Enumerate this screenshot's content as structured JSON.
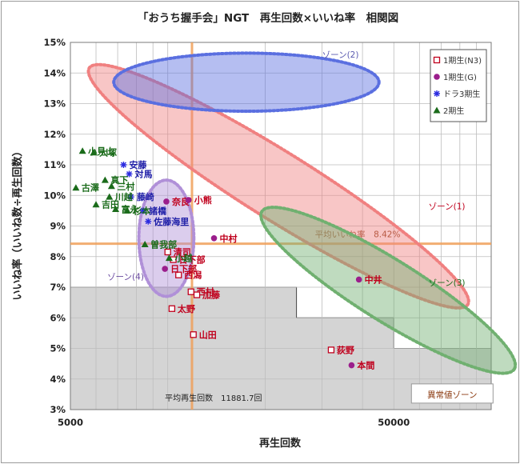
{
  "chart_data": {
    "type": "scatter",
    "title": "「おうち握手会」NGT　再生回数×いいね率　相関図",
    "xlabel": "再生回数",
    "ylabel": "いいね率（いいね数÷再生回数）",
    "x_scale": "log",
    "xlim": [
      5000,
      100000
    ],
    "ylim": [
      3,
      15
    ],
    "x_ticks": [
      5000,
      50000
    ],
    "x_tick_labels": [
      "5000",
      "50000"
    ],
    "y_ticks": [
      3,
      4,
      5,
      6,
      7,
      8,
      9,
      10,
      11,
      12,
      13,
      14,
      15
    ],
    "y_tick_labels": [
      "3%",
      "4%",
      "5%",
      "6%",
      "7%",
      "8%",
      "9%",
      "10%",
      "11%",
      "12%",
      "13%",
      "14%",
      "15%"
    ],
    "grid": true,
    "legend_position": "top-right",
    "series": [
      {
        "name": "1期生(N3)",
        "marker": "open-square",
        "color": "#c0001d",
        "label_color": "#c0001d",
        "points": [
          {
            "label": "清司",
            "x": 10000,
            "y": 8.15
          },
          {
            "label": "日下部",
            "x": 10400,
            "y": 7.9
          },
          {
            "label": "西潟",
            "x": 10800,
            "y": 7.4
          },
          {
            "label": "西村",
            "x": 11800,
            "y": 6.85
          },
          {
            "label": "加藤",
            "x": 12300,
            "y": 6.75
          },
          {
            "label": "太野",
            "x": 10300,
            "y": 6.3
          },
          {
            "label": "山田",
            "x": 12000,
            "y": 5.45
          },
          {
            "label": "荻野",
            "x": 32000,
            "y": 4.95
          }
        ]
      },
      {
        "name": "1期生(G)",
        "marker": "circle",
        "color": "#9b1e8c",
        "label_color": "#c0001d",
        "points": [
          {
            "label": "奈良",
            "x": 9900,
            "y": 9.8
          },
          {
            "label": "小熊",
            "x": 11600,
            "y": 9.85
          },
          {
            "label": "中村",
            "x": 13900,
            "y": 8.6
          },
          {
            "label": "中井",
            "x": 39000,
            "y": 7.25
          },
          {
            "label": "日下部",
            "x": 9800,
            "y": 7.6
          },
          {
            "label": "本間",
            "x": 37000,
            "y": 4.45
          }
        ]
      },
      {
        "name": "ドラ3期生",
        "marker": "asterisk",
        "color": "#2b2be0",
        "label_color": "#1f1fa8",
        "points": [
          {
            "label": "安藤",
            "x": 7300,
            "y": 11.0
          },
          {
            "label": "対馬",
            "x": 7600,
            "y": 10.7
          },
          {
            "label": "藤崎",
            "x": 7700,
            "y": 9.95
          },
          {
            "label": "諸橋",
            "x": 8400,
            "y": 9.5
          },
          {
            "label": "佐藤海里",
            "x": 8700,
            "y": 9.15
          }
        ]
      },
      {
        "name": "2期生",
        "marker": "triangle",
        "color": "#1a6b1a",
        "label_color": "#1a6b1a",
        "points": [
          {
            "label": "小見山",
            "x": 5450,
            "y": 11.45
          },
          {
            "label": "大塚",
            "x": 5900,
            "y": 11.4
          },
          {
            "label": "真下",
            "x": 6400,
            "y": 10.5
          },
          {
            "label": "三村",
            "x": 6700,
            "y": 10.3
          },
          {
            "label": "古澤",
            "x": 5200,
            "y": 10.25
          },
          {
            "label": "川越",
            "x": 6600,
            "y": 9.95
          },
          {
            "label": "吉田",
            "x": 6000,
            "y": 9.7
          },
          {
            "label": "富永",
            "x": 6900,
            "y": 9.55
          },
          {
            "label": "杉本",
            "x": 7500,
            "y": 9.5
          },
          {
            "label": "曽我部",
            "x": 8500,
            "y": 8.4
          },
          {
            "label": "小越",
            "x": 10100,
            "y": 7.95
          }
        ]
      }
    ],
    "reference_lines": [
      {
        "axis": "y",
        "value": 8.42,
        "label": "平均いいね率　8.42%"
      },
      {
        "axis": "x",
        "value": 11881.7,
        "label": "平均再生回数　11881.7回"
      }
    ],
    "zones": [
      {
        "label": "ゾーン(1)",
        "color": "#f08080",
        "cx": 22000,
        "cy": 10.3,
        "rx_dec": 0.69,
        "ry": 1.1,
        "angle": 32
      },
      {
        "label": "ゾーン(2)",
        "color": "#5a6fe0",
        "cx": 17500,
        "cy": 13.7,
        "rx_dec": 0.41,
        "ry": 0.95,
        "angle": 0
      },
      {
        "label": "ゾーン(3)",
        "color": "#70b070",
        "cx": 48000,
        "cy": 6.9,
        "rx_dec": 0.46,
        "ry": 1.0,
        "angle": 32
      },
      {
        "label": "ゾーン(4)",
        "color": "#b090d8",
        "cx": 9900,
        "cy": 8.6,
        "rx_dec": 0.085,
        "ry": 1.9,
        "angle": 0
      }
    ],
    "outlier_zone": {
      "label": "異常値ゾーン",
      "color": "#d4d4d4",
      "boundary": [
        [
          5000,
          7
        ],
        [
          25000,
          7
        ],
        [
          25000,
          6
        ],
        [
          50000,
          6
        ],
        [
          50000,
          5
        ],
        [
          100000,
          5
        ],
        [
          100000,
          3
        ],
        [
          5000,
          3
        ]
      ]
    },
    "legend_title_color": "#333333"
  }
}
